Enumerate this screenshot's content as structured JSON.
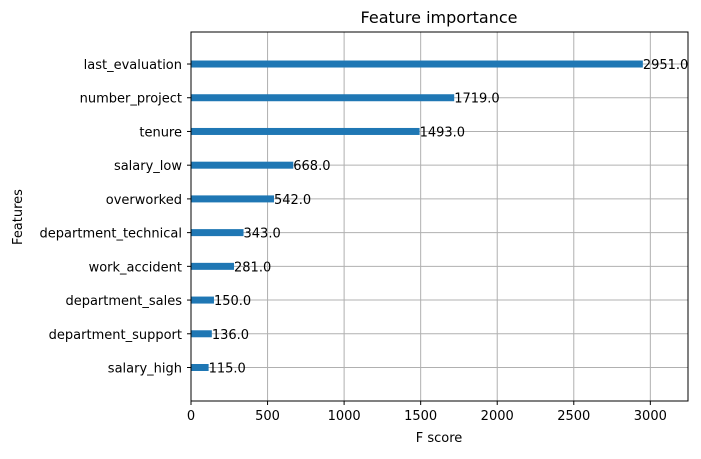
{
  "chart_data": {
    "type": "bar",
    "orientation": "horizontal",
    "title": "Feature importance",
    "xlabel": "F score",
    "ylabel": "Features",
    "categories": [
      "salary_high",
      "department_support",
      "department_sales",
      "work_accident",
      "department_technical",
      "overworked",
      "salary_low",
      "tenure",
      "number_project",
      "last_evaluation"
    ],
    "values": [
      115,
      136,
      150,
      281,
      343,
      542,
      668,
      1493,
      1719,
      2951
    ],
    "data_labels": [
      "115.0",
      "136.0",
      "150.0",
      "281.0",
      "343.0",
      "542.0",
      "668.0",
      "1493.0",
      "1719.0",
      "2951.0"
    ],
    "xlim": [
      0,
      3246
    ],
    "xticks": [
      0,
      500,
      1000,
      1500,
      2000,
      2500,
      3000
    ],
    "xtick_labels": [
      "0",
      "500",
      "1000",
      "1500",
      "2000",
      "2500",
      "3000"
    ],
    "grid": true,
    "bar_color": "#1f77b4",
    "grid_color": "#b0b0b0"
  }
}
